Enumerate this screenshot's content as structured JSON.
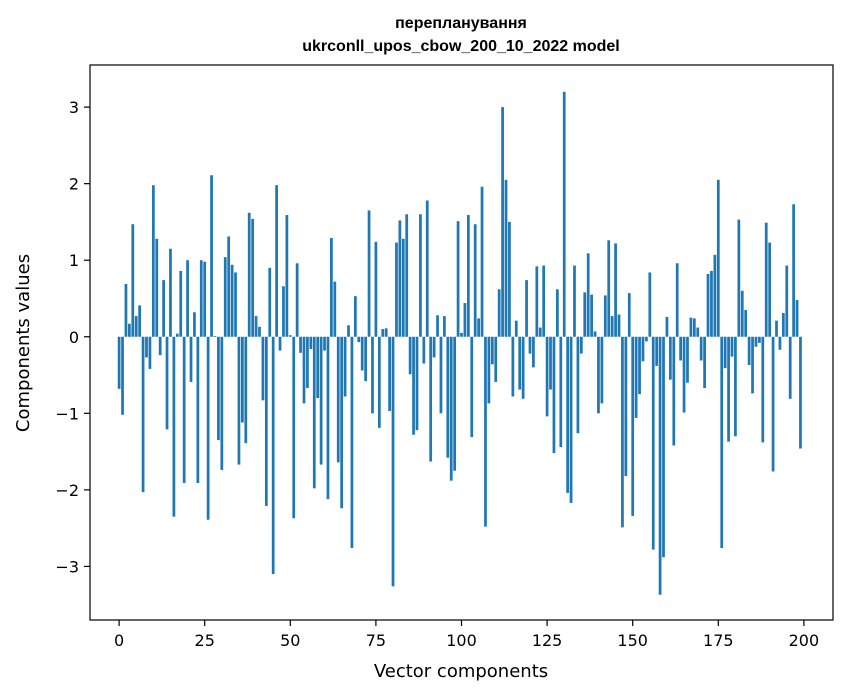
{
  "chart_data": {
    "type": "bar",
    "title": "перепланування",
    "subtitle": "ukrconll_upos_cbow_200_10_2022 model",
    "xlabel": "Vector components",
    "ylabel": "Components values",
    "xlim": [
      -8.5,
      208.5
    ],
    "ylim": [
      -3.7,
      3.55
    ],
    "xticks": [
      0,
      25,
      50,
      75,
      100,
      125,
      150,
      175,
      200
    ],
    "yticks": [
      -3,
      -2,
      -1,
      0,
      1,
      2,
      3
    ],
    "ytick_labels": [
      "−3",
      "−2",
      "−1",
      "0",
      "1",
      "2",
      "3"
    ],
    "bar_color": "#1f77b4",
    "x": [
      0,
      1,
      2,
      3,
      4,
      5,
      6,
      7,
      8,
      9,
      10,
      11,
      12,
      13,
      14,
      15,
      16,
      17,
      18,
      19,
      20,
      21,
      22,
      23,
      24,
      25,
      26,
      27,
      28,
      29,
      30,
      31,
      32,
      33,
      34,
      35,
      36,
      37,
      38,
      39,
      40,
      41,
      42,
      43,
      44,
      45,
      46,
      47,
      48,
      49,
      50,
      51,
      52,
      53,
      54,
      55,
      56,
      57,
      58,
      59,
      60,
      61,
      62,
      63,
      64,
      65,
      66,
      67,
      68,
      69,
      70,
      71,
      72,
      73,
      74,
      75,
      76,
      77,
      78,
      79,
      80,
      81,
      82,
      83,
      84,
      85,
      86,
      87,
      88,
      89,
      90,
      91,
      92,
      93,
      94,
      95,
      96,
      97,
      98,
      99,
      100,
      101,
      102,
      103,
      104,
      105,
      106,
      107,
      108,
      109,
      110,
      111,
      112,
      113,
      114,
      115,
      116,
      117,
      118,
      119,
      120,
      121,
      122,
      123,
      124,
      125,
      126,
      127,
      128,
      129,
      130,
      131,
      132,
      133,
      134,
      135,
      136,
      137,
      138,
      139,
      140,
      141,
      142,
      143,
      144,
      145,
      146,
      147,
      148,
      149,
      150,
      151,
      152,
      153,
      154,
      155,
      156,
      157,
      158,
      159,
      160,
      161,
      162,
      163,
      164,
      165,
      166,
      167,
      168,
      169,
      170,
      171,
      172,
      173,
      174,
      175,
      176,
      177,
      178,
      179,
      180,
      181,
      182,
      183,
      184,
      185,
      186,
      187,
      188,
      189,
      190,
      191,
      192,
      193,
      194,
      195,
      196,
      197,
      198,
      199
    ],
    "values": [
      -0.68,
      -1.02,
      0.69,
      0.17,
      1.47,
      0.27,
      0.41,
      -2.03,
      -0.27,
      -0.42,
      1.98,
      1.28,
      -0.24,
      0.74,
      -1.21,
      1.15,
      -2.35,
      0.04,
      0.86,
      -1.91,
      1.0,
      -0.59,
      0.32,
      -1.91,
      1.0,
      0.98,
      -2.39,
      2.11,
      0.01,
      -1.35,
      -1.74,
      1.04,
      1.31,
      0.94,
      0.84,
      -1.67,
      -1.12,
      -1.39,
      1.62,
      1.54,
      0.27,
      0.13,
      -0.83,
      -2.21,
      0.9,
      -3.1,
      1.98,
      -0.18,
      0.66,
      1.59,
      0.02,
      -2.37,
      0.96,
      -0.21,
      -0.87,
      -0.67,
      -0.16,
      -1.98,
      -0.8,
      -1.67,
      -0.18,
      -2.12,
      1.29,
      0.72,
      -1.64,
      -2.24,
      -0.78,
      0.15,
      -2.76,
      0.53,
      -0.07,
      -0.44,
      -0.58,
      1.65,
      -1.0,
      1.24,
      -1.19,
      0.1,
      0.11,
      -0.97,
      -3.26,
      1.23,
      1.52,
      1.28,
      1.6,
      -0.49,
      -1.28,
      -1.22,
      1.6,
      -0.35,
      1.78,
      -1.63,
      -0.27,
      0.28,
      -1.0,
      0.27,
      -1.58,
      -1.88,
      -1.75,
      1.51,
      0.05,
      0.44,
      1.59,
      -1.31,
      1.47,
      0.24,
      1.96,
      -2.48,
      -0.87,
      -0.36,
      -0.59,
      0.62,
      3.0,
      2.05,
      1.5,
      -0.78,
      0.21,
      -0.69,
      -0.81,
      0.74,
      -0.22,
      -0.4,
      0.92,
      0.12,
      0.93,
      -1.04,
      -0.69,
      -1.52,
      0.62,
      -1.44,
      3.2,
      -2.04,
      -2.17,
      0.93,
      -1.26,
      -0.22,
      0.58,
      1.09,
      0.55,
      0.07,
      -1.0,
      -0.87,
      0.54,
      1.26,
      0.27,
      1.22,
      0.29,
      -2.49,
      -1.82,
      0.57,
      -2.34,
      -1.06,
      -0.75,
      -0.32,
      -0.06,
      0.84,
      -2.78,
      -0.38,
      -3.37,
      -2.88,
      0.26,
      -0.56,
      -1.42,
      0.96,
      -0.31,
      -0.99,
      -0.6,
      0.25,
      0.24,
      0.12,
      -0.31,
      -0.67,
      0.82,
      0.86,
      1.07,
      2.05,
      -2.76,
      -0.41,
      -1.37,
      -0.26,
      -1.3,
      1.53,
      0.6,
      0.35,
      -0.37,
      -0.74,
      -0.13,
      -0.08,
      -1.38,
      1.49,
      1.23,
      -1.76,
      0.21,
      -0.17,
      0.31,
      0.93,
      -0.81,
      1.73,
      0.48,
      -1.46
    ]
  }
}
